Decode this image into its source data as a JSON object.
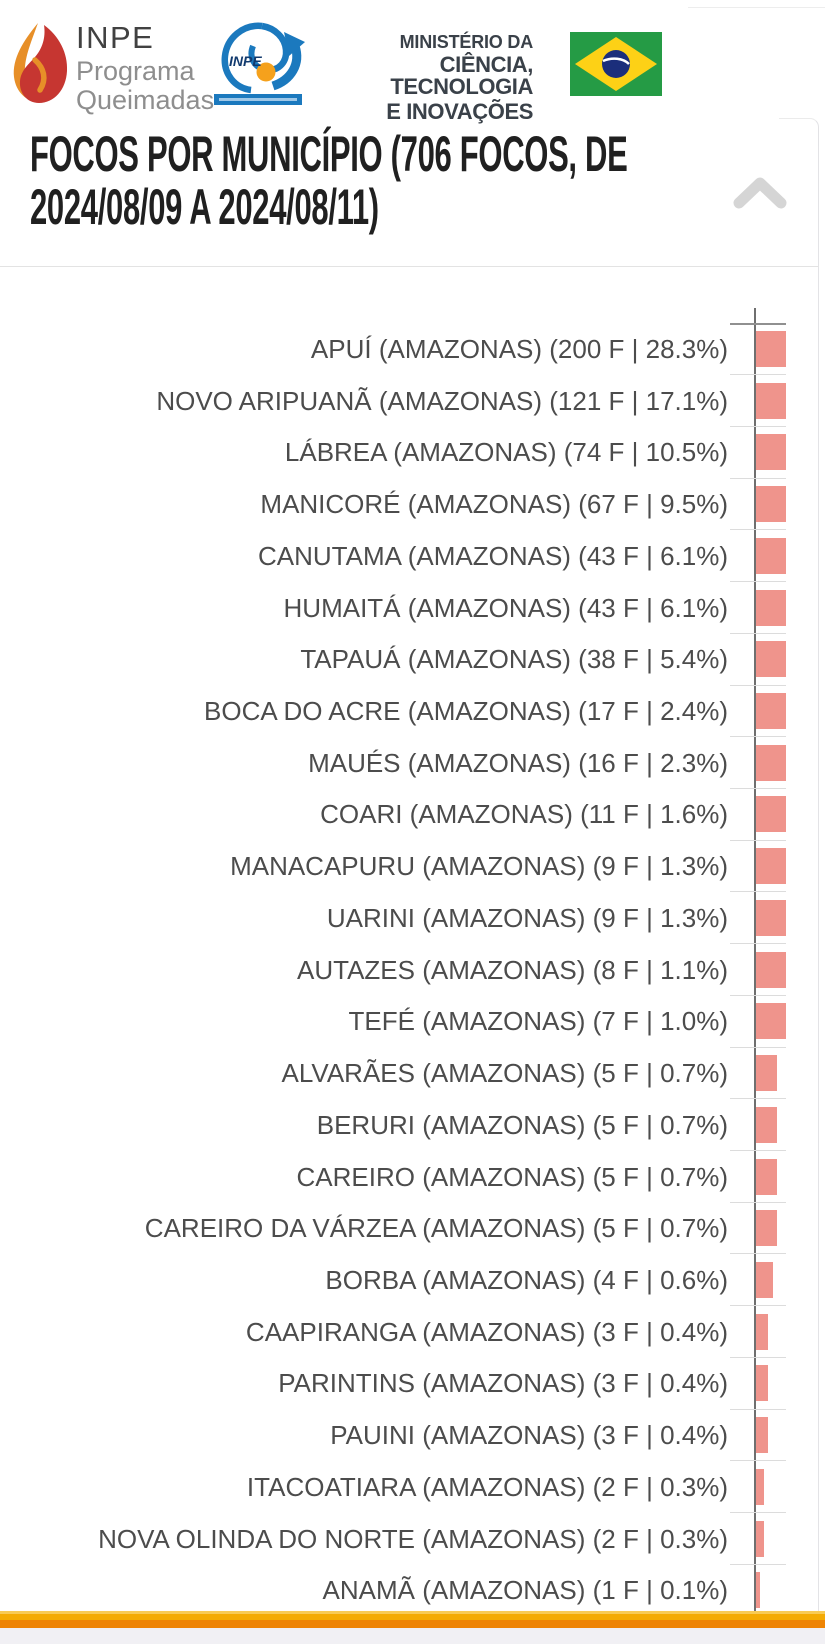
{
  "header": {
    "logo": {
      "inpe": "INPE",
      "programa": "Programa",
      "queimadas": "Queimadas"
    },
    "satellite_label": "INPE",
    "ministry": {
      "line1": "MINISTÉRIO DA",
      "line2": "CIÊNCIA, TECNOLOGIA",
      "line3": "E INOVAÇÕES"
    }
  },
  "panel": {
    "title_line1": "FOCOS POR MUNICÍPIO (706 FOCOS, DE",
    "title_line2": "2024/08/09 A 2024/08/11)",
    "title_full": "FOCOS POR MUNICÍPIO (706 FOCOS, DE 2024/08/09 A 2024/08/11)",
    "collapse_icon": "chevron-up"
  },
  "chart_data": {
    "type": "bar",
    "orientation": "horizontal",
    "title": "FOCOS POR MUNICÍPIO (706 FOCOS, DE 2024/08/09 A 2024/08/11)",
    "total_focos": 706,
    "period_start": "2024/08/09",
    "period_end": "2024/08/11",
    "state": "AMAZONAS",
    "unit": "F",
    "bar_color": "#ef948c",
    "grid": true,
    "value_axis_clipped_at_right_edge": true,
    "categories": [
      "APUÍ",
      "NOVO ARIPUANÃ",
      "LÁBREA",
      "MANICORÉ",
      "CANUTAMA",
      "HUMAITÁ",
      "TAPAUÁ",
      "BOCA DO ACRE",
      "MAUÉS",
      "COARI",
      "MANACAPURU",
      "UARINI",
      "AUTAZES",
      "TEFÉ",
      "ALVARÃES",
      "BERURI",
      "CAREIRO",
      "CAREIRO DA VÁRZEA",
      "BORBA",
      "CAAPIRANGA",
      "PARINTINS",
      "PAUINI",
      "ITACOATIARA",
      "NOVA OLINDA DO NORTE",
      "ANAMÃ"
    ],
    "values": [
      200,
      121,
      74,
      67,
      43,
      43,
      38,
      17,
      16,
      11,
      9,
      9,
      8,
      7,
      5,
      5,
      5,
      5,
      4,
      3,
      3,
      3,
      2,
      2,
      1
    ],
    "percents": [
      "28.3",
      "17.1",
      "10.5",
      "9.5",
      "6.1",
      "6.1",
      "5.4",
      "2.4",
      "2.3",
      "1.6",
      "1.3",
      "1.3",
      "1.1",
      "1.0",
      "0.7",
      "0.7",
      "0.7",
      "0.7",
      "0.6",
      "0.4",
      "0.4",
      "0.4",
      "0.3",
      "0.3",
      "0.1"
    ],
    "labels": [
      "APUÍ (AMAZONAS) (200 F | 28.3%)",
      "NOVO ARIPUANÃ (AMAZONAS) (121 F | 17.1%)",
      "LÁBREA (AMAZONAS) (74 F | 10.5%)",
      "MANICORÉ (AMAZONAS) (67 F | 9.5%)",
      "CANUTAMA (AMAZONAS) (43 F | 6.1%)",
      "HUMAITÁ (AMAZONAS) (43 F | 6.1%)",
      "TAPAUÁ (AMAZONAS) (38 F | 5.4%)",
      "BOCA DO ACRE (AMAZONAS) (17 F | 2.4%)",
      "MAUÉS (AMAZONAS) (16 F | 2.3%)",
      "COARI (AMAZONAS) (11 F | 1.6%)",
      "MANACAPURU (AMAZONAS) (9 F | 1.3%)",
      "UARINI (AMAZONAS) (9 F | 1.3%)",
      "AUTAZES (AMAZONAS) (8 F | 1.1%)",
      "TEFÉ (AMAZONAS) (7 F | 1.0%)",
      "ALVARÃES (AMAZONAS) (5 F | 0.7%)",
      "BERURI (AMAZONAS) (5 F | 0.7%)",
      "CAREIRO (AMAZONAS) (5 F | 0.7%)",
      "CAREIRO DA VÁRZEA (AMAZONAS) (5 F | 0.7%)",
      "BORBA (AMAZONAS) (4 F | 0.6%)",
      "CAAPIRANGA (AMAZONAS) (3 F | 0.4%)",
      "PARINTINS (AMAZONAS) (3 F | 0.4%)",
      "PAUINI (AMAZONAS) (3 F | 0.4%)",
      "ITACOATIARA (AMAZONAS) (2 F | 0.3%)",
      "NOVA OLINDA DO NORTE (AMAZONAS) (2 F | 0.3%)",
      "ANAMÃ (AMAZONAS) (1 F | 0.1%)"
    ]
  },
  "footer": {
    "accent_colors": [
      "#f8cb55",
      "#f4ab04",
      "#ee8404"
    ]
  }
}
